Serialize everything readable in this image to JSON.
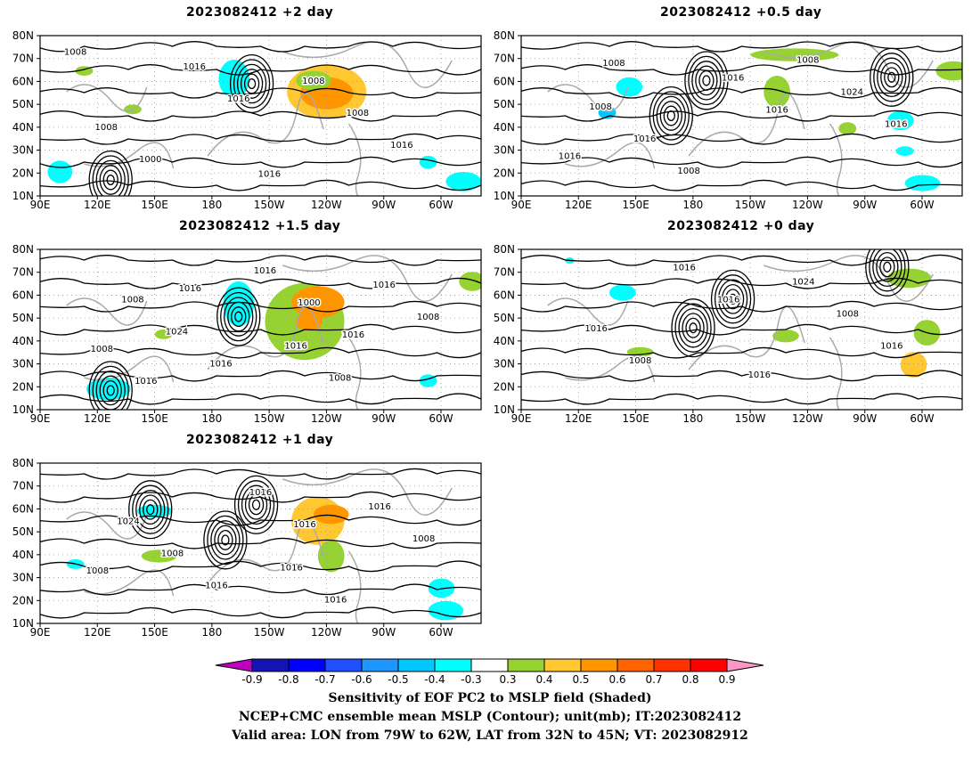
{
  "panels": [
    {
      "id": "p2",
      "title": "2023082412 +2 day",
      "contour_labels": [
        "1008",
        "1016",
        "1016",
        "1016",
        "1008",
        "1000",
        "1008",
        "1008",
        "1016"
      ]
    },
    {
      "id": "p05",
      "title": "2023082412 +0.5 day",
      "contour_labels": [
        "1008",
        "1016",
        "1016",
        "1016",
        "1016",
        "1008",
        "1024",
        "1016",
        "1008",
        "1008"
      ]
    },
    {
      "id": "p15",
      "title": "2023082412 +1.5 day",
      "contour_labels": [
        "1016",
        "1016",
        "1016",
        "1000",
        "1008",
        "1016",
        "1008",
        "1016",
        "1016",
        "1024",
        "1008",
        "1008",
        "1016"
      ]
    },
    {
      "id": "p0",
      "title": "2023082412 +0 day",
      "contour_labels": [
        "1016",
        "1016",
        "1016",
        "1008",
        "1008",
        "1024",
        "1016",
        "1016"
      ]
    },
    {
      "id": "p1",
      "title": "2023082412 +1 day",
      "contour_labels": [
        "1016",
        "1008",
        "1016",
        "1008",
        "1016",
        "1016",
        "1008",
        "1016",
        "1024",
        "1016"
      ]
    }
  ],
  "lat_ticks": [
    "80N",
    "70N",
    "60N",
    "50N",
    "40N",
    "30N",
    "20N",
    "10N"
  ],
  "lon_ticks": [
    "90E",
    "120E",
    "150E",
    "180",
    "150W",
    "120W",
    "90W",
    "60W"
  ],
  "colorbar": {
    "labels": [
      "-0.9",
      "-0.8",
      "-0.7",
      "-0.6",
      "-0.5",
      "-0.4",
      "-0.3",
      "0.3",
      "0.4",
      "0.5",
      "0.6",
      "0.7",
      "0.8",
      "0.9"
    ],
    "colors": [
      "#c000c0",
      "#1414b4",
      "#0000ff",
      "#1e50ff",
      "#1e96ff",
      "#00c8ff",
      "#00ffff",
      "#ffffff",
      "#96d232",
      "#ffc832",
      "#ff9600",
      "#ff6400",
      "#ff3200",
      "#ff0000",
      "#ff96c8"
    ]
  },
  "caption": {
    "line1": "Sensitivity of EOF PC2 to MSLP field (Shaded)",
    "line2": "NCEP+CMC ensemble mean MSLP (Contour); unit(mb); IT:2023082412",
    "line3": "Valid area: LON from 79W to 62W, LAT from 32N to 45N; VT: 2023082912"
  }
}
